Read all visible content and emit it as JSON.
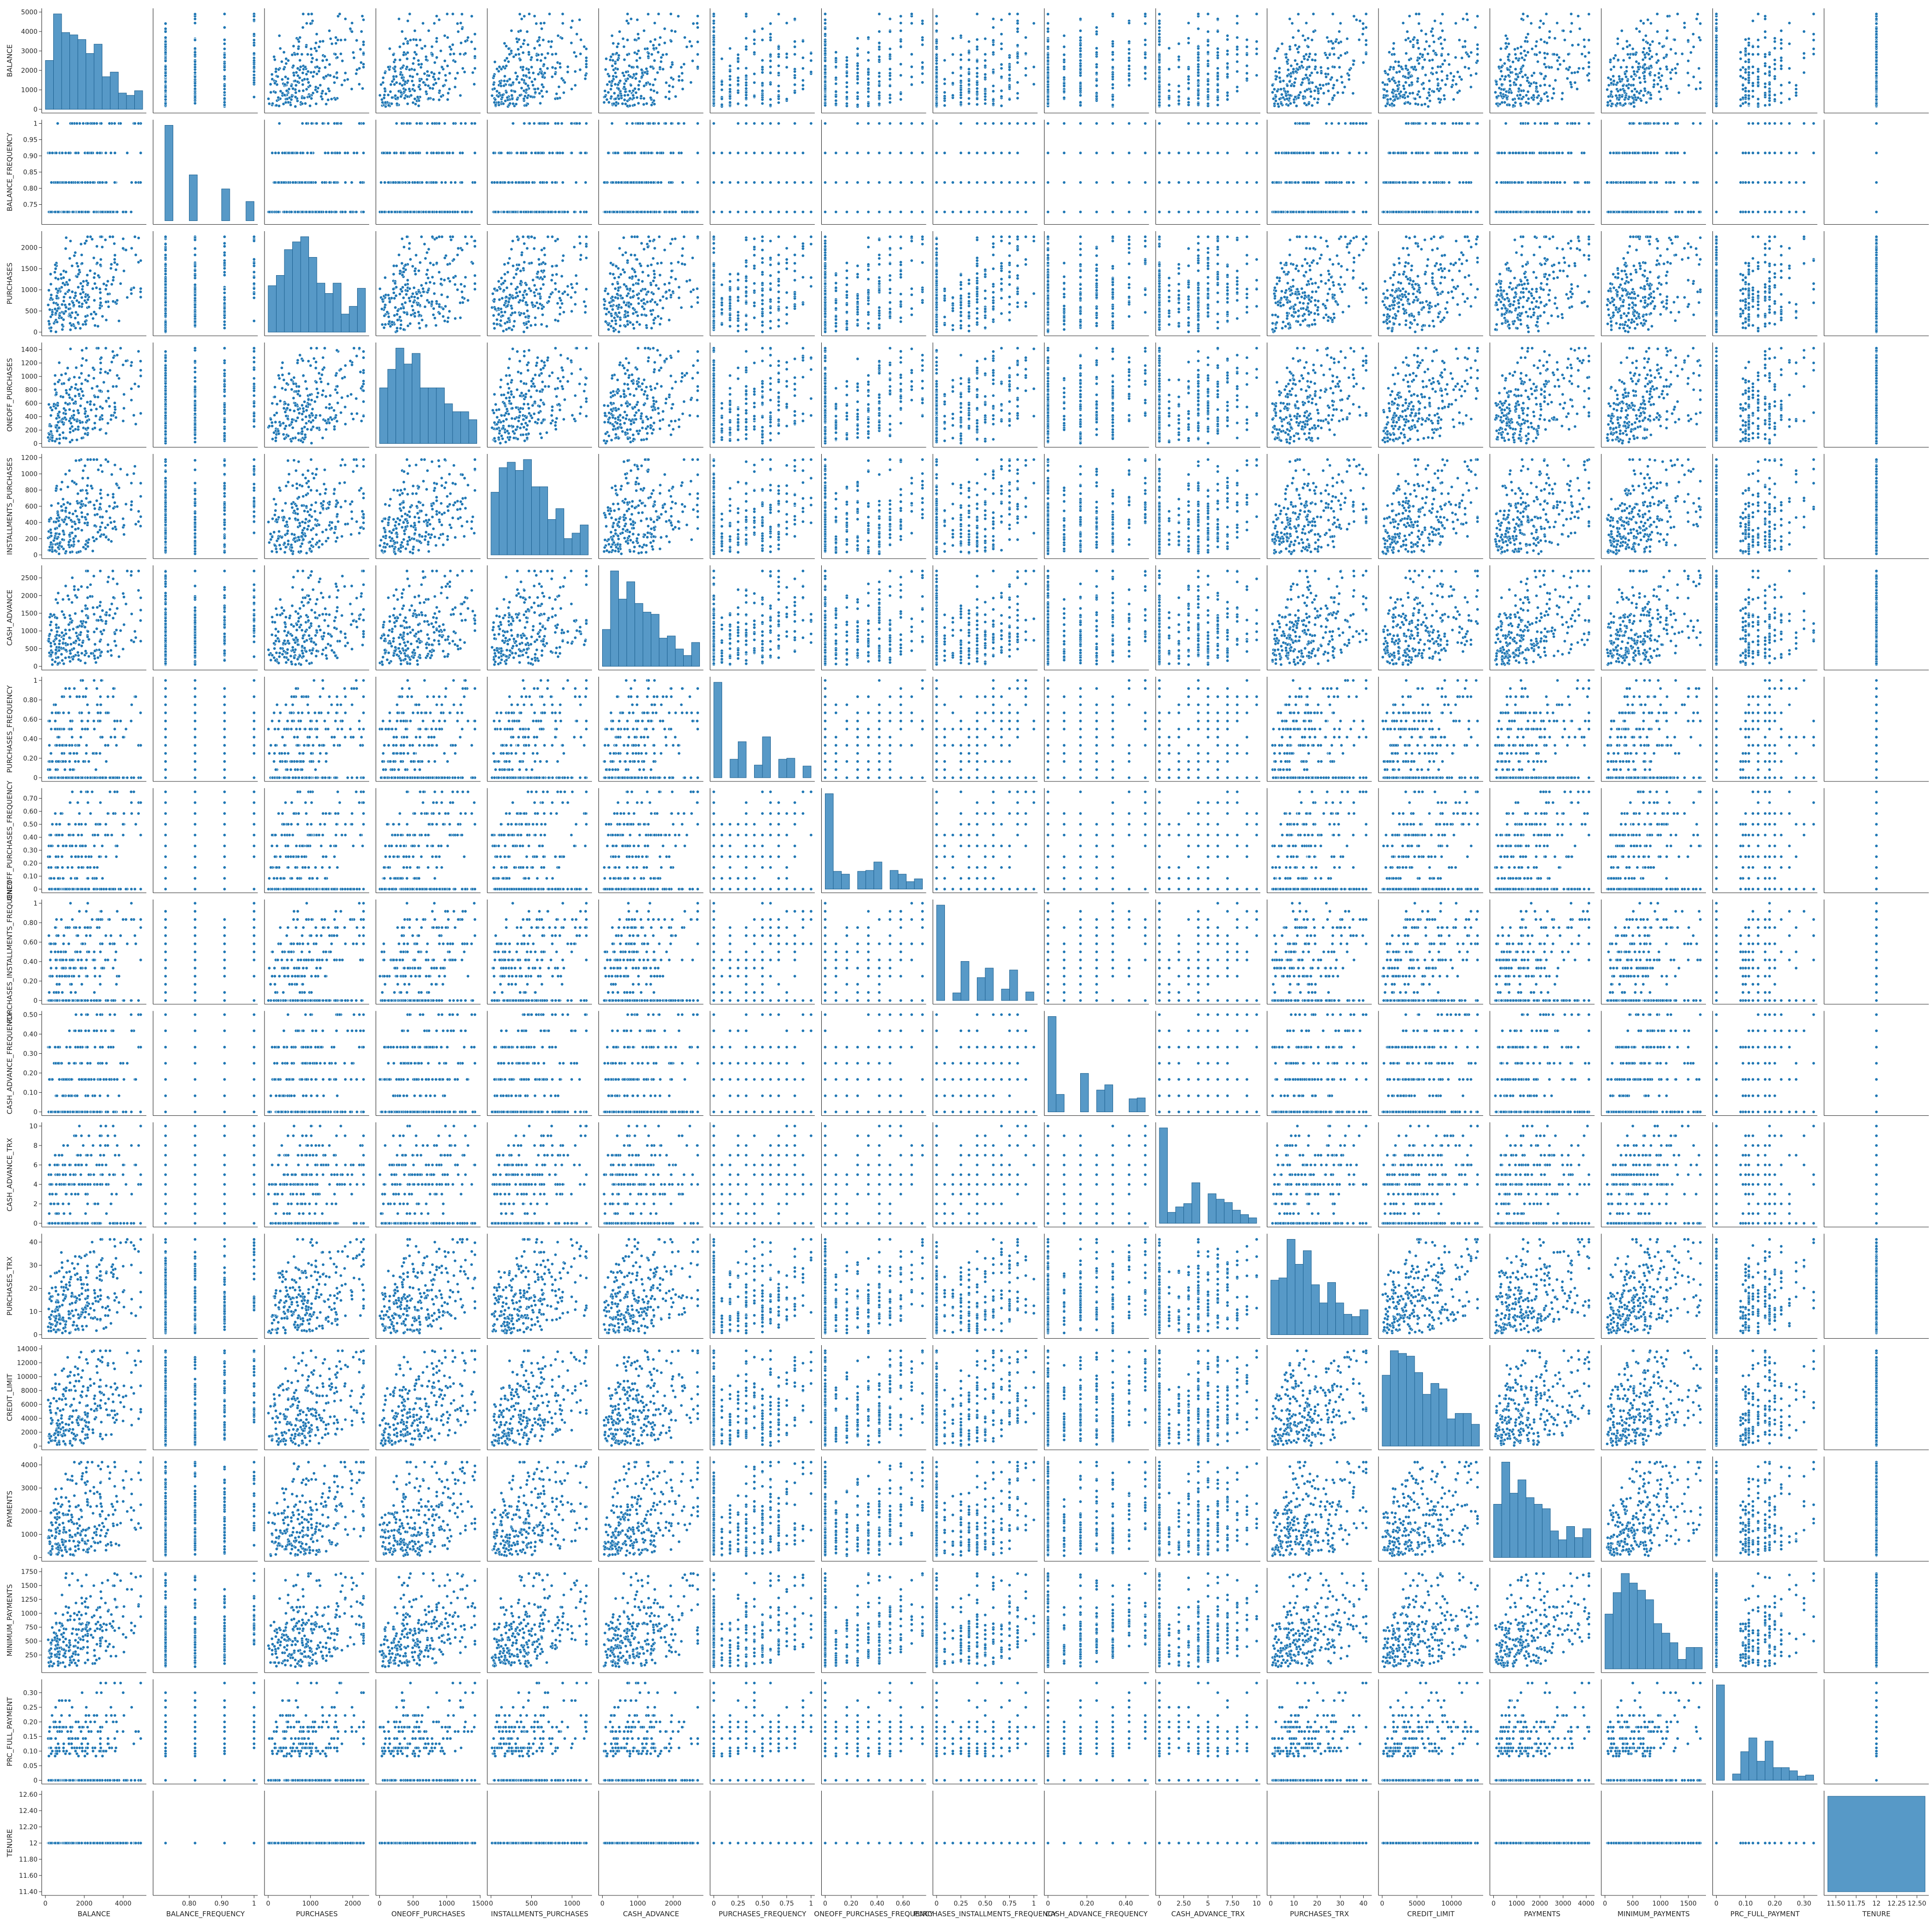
{
  "chart_data": {
    "type": "scatter",
    "subtype": "pairplot",
    "grid": false,
    "point_color": "#1f77b4",
    "bar_color": "#1f77b4",
    "variables": [
      {
        "name": "BALANCE",
        "range": [
          0,
          5000
        ],
        "ticks": [
          0,
          1000,
          2000,
          3000,
          4000,
          5000
        ],
        "x_ticks": [
          0,
          2000,
          4000
        ],
        "kind": "skew"
      },
      {
        "name": "BALANCE_FREQUENCY",
        "range": [
          0.7,
          1.0
        ],
        "ticks": [
          0.75,
          0.8,
          0.85,
          0.9,
          0.95,
          1.0
        ],
        "x_ticks": [
          0.8,
          0.9,
          1.0
        ],
        "kind": "discrete",
        "levels": [
          0.727,
          0.818,
          0.909,
          1.0
        ]
      },
      {
        "name": "PURCHASES",
        "range": [
          0,
          2300
        ],
        "ticks": [
          0,
          500,
          1000,
          1500,
          2000
        ],
        "x_ticks": [
          0,
          1000,
          2000
        ],
        "kind": "skew"
      },
      {
        "name": "ONEOFF_PURCHASES",
        "range": [
          0,
          1450
        ],
        "ticks": [
          0,
          200,
          400,
          600,
          800,
          1000,
          1200,
          1400
        ],
        "x_ticks": [
          0,
          500,
          1000,
          1500
        ],
        "kind": "skew"
      },
      {
        "name": "INSTALLMENTS_PURCHASES",
        "range": [
          0,
          1200
        ],
        "ticks": [
          0,
          200,
          400,
          600,
          800,
          1000,
          1200
        ],
        "x_ticks": [
          0,
          500,
          1000
        ],
        "kind": "skew"
      },
      {
        "name": "CASH_ADVANCE",
        "range": [
          0,
          2750
        ],
        "ticks": [
          0,
          500,
          1000,
          1500,
          2000,
          2500
        ],
        "x_ticks": [
          0,
          1000,
          2000
        ],
        "kind": "skew"
      },
      {
        "name": "PURCHASES_FREQUENCY",
        "range": [
          0,
          1
        ],
        "ticks": [
          0.0,
          0.2,
          0.4,
          0.6,
          0.8,
          1.0
        ],
        "x_ticks": [
          0.0,
          0.25,
          0.5,
          0.75,
          1.0
        ],
        "kind": "discrete",
        "levels": [
          0,
          0.083,
          0.167,
          0.25,
          0.333,
          0.417,
          0.5,
          0.583,
          0.667,
          0.75,
          0.833,
          0.917,
          1.0
        ]
      },
      {
        "name": "ONEOFF_PURCHASES_FREQUENCY",
        "range": [
          0,
          0.75
        ],
        "ticks": [
          0.0,
          0.1,
          0.2,
          0.3,
          0.4,
          0.5,
          0.6,
          0.7
        ],
        "x_ticks": [
          0.0,
          0.2,
          0.4,
          0.6
        ],
        "kind": "discrete",
        "levels": [
          0,
          0.083,
          0.167,
          0.25,
          0.333,
          0.417,
          0.5,
          0.583,
          0.667,
          0.75
        ]
      },
      {
        "name": "PURCHASES_INSTALLMENTS_FREQUENCY",
        "range": [
          0,
          1
        ],
        "ticks": [
          0.0,
          0.2,
          0.4,
          0.6,
          0.8,
          1.0
        ],
        "x_ticks": [
          0.0,
          0.25,
          0.5,
          0.75,
          1.0
        ],
        "kind": "discrete",
        "levels": [
          0,
          0.083,
          0.167,
          0.25,
          0.333,
          0.417,
          0.5,
          0.583,
          0.667,
          0.75,
          0.833,
          0.917,
          1.0
        ]
      },
      {
        "name": "CASH_ADVANCE_FREQUENCY",
        "range": [
          0,
          0.5
        ],
        "ticks": [
          0.0,
          0.1,
          0.2,
          0.3,
          0.4,
          0.5
        ],
        "x_ticks": [
          0.0,
          0.2,
          0.4
        ],
        "kind": "discrete",
        "levels": [
          0,
          0.083,
          0.167,
          0.25,
          0.333,
          0.417,
          0.5
        ]
      },
      {
        "name": "CASH_ADVANCE_TRX",
        "range": [
          0,
          10
        ],
        "ticks": [
          0,
          2,
          4,
          6,
          8,
          10
        ],
        "x_ticks": [
          0.0,
          2.5,
          5.0,
          7.5,
          10.0
        ],
        "kind": "discrete",
        "levels": [
          0,
          1,
          2,
          3,
          4,
          5,
          6,
          7,
          8,
          9,
          10
        ]
      },
      {
        "name": "PURCHASES_TRX",
        "range": [
          0,
          42
        ],
        "ticks": [
          0,
          10,
          20,
          30,
          40
        ],
        "x_ticks": [
          0,
          10,
          20,
          30,
          40
        ],
        "kind": "skew"
      },
      {
        "name": "CREDIT_LIMIT",
        "range": [
          0,
          14000
        ],
        "ticks": [
          0,
          2000,
          4000,
          6000,
          8000,
          10000,
          12000,
          14000
        ],
        "x_ticks": [
          0,
          5000,
          10000
        ],
        "kind": "skew"
      },
      {
        "name": "PAYMENTS",
        "range": [
          0,
          4200
        ],
        "ticks": [
          0,
          1000,
          2000,
          3000,
          4000
        ],
        "x_ticks": [
          0,
          1000,
          2000,
          3000,
          4000
        ],
        "kind": "skew"
      },
      {
        "name": "MINIMUM_PAYMENTS",
        "range": [
          0,
          1750
        ],
        "ticks": [
          250,
          500,
          750,
          1000,
          1250,
          1500,
          1750
        ],
        "x_ticks": [
          0,
          500,
          1000,
          1500
        ],
        "kind": "skew"
      },
      {
        "name": "PRC_FULL_PAYMENT",
        "range": [
          0,
          0.333
        ],
        "ticks": [
          0.0,
          0.05,
          0.1,
          0.15,
          0.2,
          0.25,
          0.3
        ],
        "x_ticks": [
          0.0,
          0.1,
          0.2,
          0.3
        ],
        "kind": "discrete",
        "levels": [
          0,
          0.083,
          0.091,
          0.1,
          0.111,
          0.125,
          0.143,
          0.167,
          0.182,
          0.2,
          0.222,
          0.25,
          0.273,
          0.3,
          0.333
        ]
      },
      {
        "name": "TENURE",
        "range": [
          11.4,
          12.6
        ],
        "ticks": [
          11.4,
          11.6,
          11.8,
          12.0,
          12.2,
          12.4,
          12.6
        ],
        "x_ticks": [
          11.5,
          11.75,
          12.0,
          12.25,
          12.5
        ],
        "kind": "constant",
        "levels": [
          12.0
        ]
      }
    ],
    "diagonal": "histogram",
    "off_diagonal": "scatter"
  }
}
